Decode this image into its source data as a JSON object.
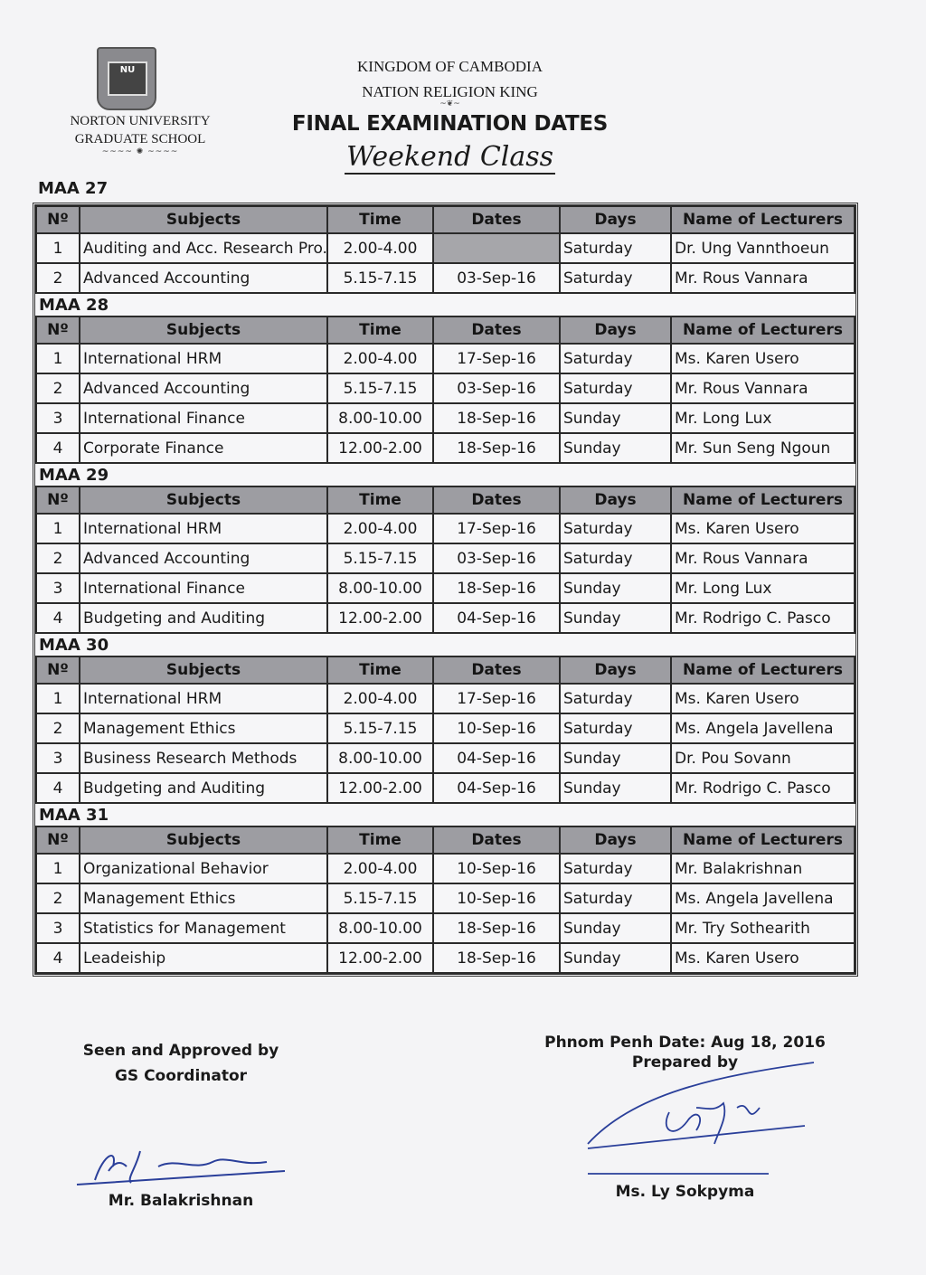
{
  "header": {
    "logo_text": "NU",
    "university": "NORTON UNIVERSITY",
    "school": "GRADUATE SCHOOL",
    "kingdom": "KINGDOM OF CAMBODIA",
    "motto": "NATION RELIGION KING",
    "title": "FINAL EXAMINATION DATES",
    "subtitle": "Weekend Class"
  },
  "columns": [
    "Nº",
    "Subjects",
    "Time",
    "Dates",
    "Days",
    "Name of Lecturers"
  ],
  "sections": [
    {
      "name": "MAA 27",
      "rows": [
        [
          "1",
          "Auditing and Acc. Research Pro.",
          "2.00-4.00",
          "",
          "Saturday",
          "Dr. Ung Vannthoeun"
        ],
        [
          "2",
          "Advanced Accounting",
          "5.15-7.15",
          "03-Sep-16",
          "Saturday",
          "Mr. Rous Vannara"
        ]
      ]
    },
    {
      "name": "MAA 28",
      "rows": [
        [
          "1",
          "International HRM",
          "2.00-4.00",
          "17-Sep-16",
          "Saturday",
          "Ms. Karen Usero"
        ],
        [
          "2",
          "Advanced Accounting",
          "5.15-7.15",
          "03-Sep-16",
          "Saturday",
          "Mr. Rous Vannara"
        ],
        [
          "3",
          "International Finance",
          "8.00-10.00",
          "18-Sep-16",
          "Sunday",
          "Mr. Long Lux"
        ],
        [
          "4",
          "Corporate Finance",
          "12.00-2.00",
          "18-Sep-16",
          "Sunday",
          "Mr. Sun Seng Ngoun"
        ]
      ]
    },
    {
      "name": "MAA 29",
      "rows": [
        [
          "1",
          "International HRM",
          "2.00-4.00",
          "17-Sep-16",
          "Saturday",
          "Ms. Karen Usero"
        ],
        [
          "2",
          "Advanced Accounting",
          "5.15-7.15",
          "03-Sep-16",
          "Saturday",
          "Mr. Rous Vannara"
        ],
        [
          "3",
          "International Finance",
          "8.00-10.00",
          "18-Sep-16",
          "Sunday",
          "Mr. Long Lux"
        ],
        [
          "4",
          "Budgeting and Auditing",
          "12.00-2.00",
          "04-Sep-16",
          "Sunday",
          "Mr. Rodrigo C. Pasco"
        ]
      ]
    },
    {
      "name": "MAA 30",
      "rows": [
        [
          "1",
          "International HRM",
          "2.00-4.00",
          "17-Sep-16",
          "Saturday",
          "Ms. Karen Usero"
        ],
        [
          "2",
          "Management Ethics",
          "5.15-7.15",
          "10-Sep-16",
          "Saturday",
          "Ms. Angela Javellena"
        ],
        [
          "3",
          "Business Research Methods",
          "8.00-10.00",
          "04-Sep-16",
          "Sunday",
          "Dr. Pou Sovann"
        ],
        [
          "4",
          "Budgeting and Auditing",
          "12.00-2.00",
          "04-Sep-16",
          "Sunday",
          "Mr. Rodrigo C. Pasco"
        ]
      ]
    },
    {
      "name": "MAA 31",
      "rows": [
        [
          "1",
          "Organizational Behavior",
          "2.00-4.00",
          "10-Sep-16",
          "Saturday",
          "Mr. Balakrishnan"
        ],
        [
          "2",
          "Management Ethics",
          "5.15-7.15",
          "10-Sep-16",
          "Saturday",
          "Ms. Angela Javellena"
        ],
        [
          "3",
          "Statistics for Management",
          "8.00-10.00",
          "18-Sep-16",
          "Sunday",
          "Mr. Try Sothearith"
        ],
        [
          "4",
          "Leadeiship",
          "12.00-2.00",
          "18-Sep-16",
          "Sunday",
          "Ms. Karen Usero"
        ]
      ]
    }
  ],
  "footer": {
    "approved_label": "Seen and Approved by",
    "approved_role": "GS Coordinator",
    "approver_name": "Mr. Balakrishnan",
    "date_line": "Phnom Penh Date: Aug 18, 2016",
    "prepared_label": "Prepared by",
    "preparer_name": "Ms. Ly Sokpyma"
  },
  "colors": {
    "header_fill": "#9d9da2",
    "paper": "#f4f4f6"
  }
}
